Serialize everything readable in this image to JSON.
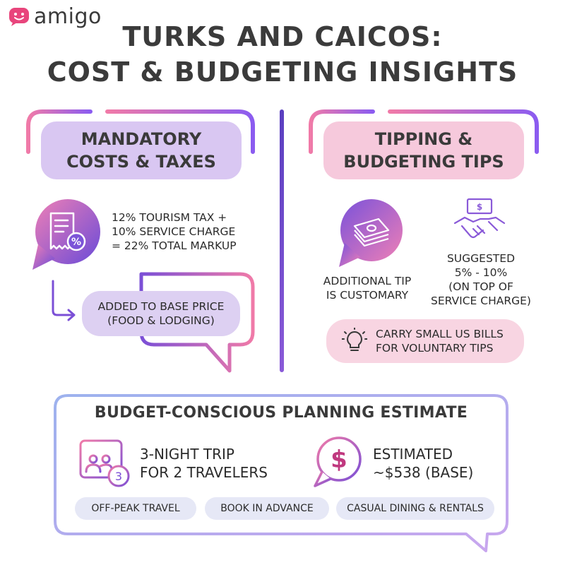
{
  "brand": {
    "name": "amigo"
  },
  "title": {
    "line1": "TURKS AND CAICOS:",
    "line2": "COST & BUDGETING INSIGHTS"
  },
  "left_section": {
    "heading_line1": "MANDATORY",
    "heading_line2": "COSTS & TAXES",
    "tax_lines": [
      "12% TOURISM TAX +",
      "10% SERVICE CHARGE",
      "= 22% TOTAL MARKUP"
    ],
    "added_lines": [
      "ADDED TO BASE PRICE",
      "(FOOD & LODGING)"
    ],
    "icon": "receipt-percent-icon"
  },
  "right_section": {
    "heading_line1": "TIPPING &",
    "heading_line2": "BUDGETING TIPS",
    "tip_lines": [
      "ADDITIONAL TIP",
      "IS CUSTOMARY"
    ],
    "suggest_lines": [
      "SUGGESTED",
      "5% - 10%",
      "(ON TOP OF",
      "SERVICE CHARGE)"
    ],
    "bills_lines": [
      "CARRY SMALL US BILLS",
      "FOR VOLUNTARY TIPS"
    ]
  },
  "estimate": {
    "heading": "BUDGET-CONSCIOUS PLANNING ESTIMATE",
    "trip_lines": [
      "3-NIGHT TRIP",
      "FOR 2 TRAVELERS"
    ],
    "calendar_badge": "3",
    "cost_lines": [
      "ESTIMATED",
      "~$538 (BASE)"
    ],
    "tags": [
      "OFF-PEAK TRAVEL",
      "BOOK IN ADVANCE",
      "CASUAL DINING & RENTALS"
    ]
  },
  "colors": {
    "purple": "#7b4fd6",
    "pink": "#f07aa8",
    "lavender": "#d9c7f2",
    "rose": "#f6c9dc"
  }
}
